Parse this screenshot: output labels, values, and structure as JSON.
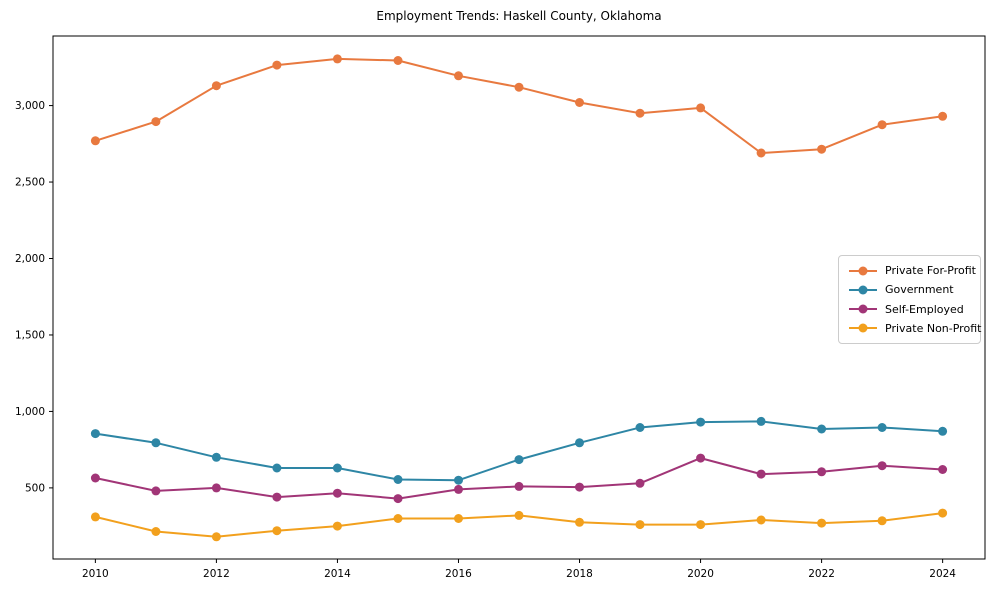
{
  "chart_data": {
    "type": "line",
    "title": "Employment Trends: Haskell County, Oklahoma",
    "xlabel": "",
    "ylabel": "",
    "x": [
      2010,
      2011,
      2012,
      2013,
      2014,
      2015,
      2016,
      2017,
      2018,
      2019,
      2020,
      2021,
      2022,
      2023,
      2024
    ],
    "series": [
      {
        "name": "Private For-Profit",
        "color": "#E8793F",
        "values": [
          2770,
          2895,
          3130,
          3265,
          3305,
          3295,
          3195,
          3120,
          3020,
          2950,
          2985,
          2690,
          2715,
          2875,
          2930
        ]
      },
      {
        "name": "Government",
        "color": "#2E86A5",
        "values": [
          855,
          795,
          700,
          630,
          630,
          555,
          550,
          685,
          795,
          895,
          930,
          935,
          885,
          895,
          870
        ]
      },
      {
        "name": "Self-Employed",
        "color": "#A13577",
        "values": [
          565,
          480,
          500,
          440,
          465,
          430,
          490,
          510,
          505,
          530,
          695,
          590,
          605,
          645,
          620
        ]
      },
      {
        "name": "Private Non-Profit",
        "color": "#F2A01D",
        "values": [
          310,
          215,
          180,
          220,
          250,
          300,
          300,
          320,
          275,
          260,
          260,
          290,
          270,
          285,
          335
        ]
      }
    ],
    "xticks": [
      2010,
      2012,
      2014,
      2016,
      2018,
      2020,
      2022,
      2024
    ],
    "xtick_labels": [
      "2010",
      "2012",
      "2014",
      "2016",
      "2018",
      "2020",
      "2022",
      "2024"
    ],
    "yticks": [
      500,
      1000,
      1500,
      2000,
      2500,
      3000
    ],
    "ytick_labels": [
      "500",
      "1,000",
      "1,500",
      "2,000",
      "2,500",
      "3,000"
    ],
    "xlim": [
      2009.3,
      2024.7
    ],
    "ylim": [
      35,
      3455
    ],
    "grid": false,
    "legend_position": "center-right",
    "marker": "circle",
    "axis_color": "#000000",
    "tick_label_color": "#000000"
  }
}
